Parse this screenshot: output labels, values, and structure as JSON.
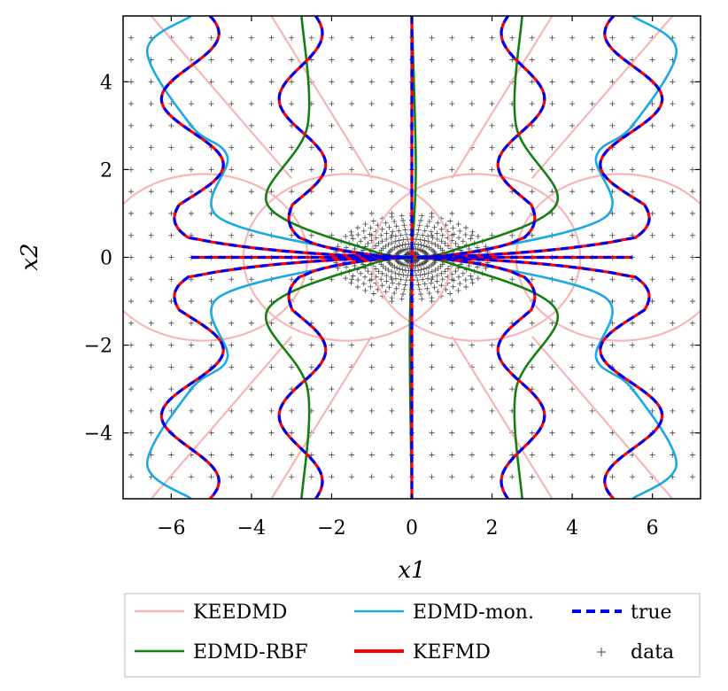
{
  "chart_data": {
    "type": "line",
    "xlabel": "x1",
    "ylabel": "x2",
    "xlim": [
      -7.2,
      7.2
    ],
    "ylim": [
      -5.5,
      5.5
    ],
    "x_ticks": [
      -6,
      -4,
      -2,
      0,
      2,
      4,
      6
    ],
    "y_ticks": [
      -4,
      -2,
      0,
      2,
      4
    ],
    "x_tick_labels": [
      "−6",
      "−4",
      "−2",
      "0",
      "2",
      "4",
      "6"
    ],
    "y_tick_labels": [
      "−4",
      "−2",
      "0",
      "2",
      "4"
    ],
    "grid": false,
    "legend_position": "below",
    "colors": {
      "KEEDMD": "#f7b6b6",
      "EDMD-mon.": "#1ba9e1",
      "true": "#0000ee",
      "EDMD-RBF": "#138013",
      "KEFMD": "#ff0000",
      "data": "#444444"
    },
    "legend": [
      {
        "name": "KEEDMD",
        "style": "solid"
      },
      {
        "name": "EDMD-mon.",
        "style": "solid"
      },
      {
        "name": "true",
        "style": "dashed"
      },
      {
        "name": "EDMD-RBF",
        "style": "solid"
      },
      {
        "name": "KEFMD",
        "style": "solid"
      },
      {
        "name": "data",
        "style": "marker"
      }
    ],
    "true_level_x": [
      -5.5,
      -2.75,
      0,
      2.75,
      5.5
    ],
    "series": [
      {
        "name": "true",
        "points": [
          [
            0,
            -5.5
          ],
          [
            0,
            5.5
          ]
        ]
      },
      {
        "name": "EDMD-mon.",
        "points": [
          [
            5.5,
            5.5
          ],
          [
            6.6,
            4.7
          ],
          [
            5.5,
            3.0
          ],
          [
            4.6,
            2.3
          ],
          [
            4.8,
            0.9
          ],
          [
            1.0,
            0.05
          ],
          [
            0,
            0
          ],
          [
            1.0,
            -0.05
          ],
          [
            4.8,
            -0.9
          ],
          [
            4.6,
            -2.3
          ],
          [
            5.5,
            -3.0
          ],
          [
            6.6,
            -4.7
          ],
          [
            5.5,
            -5.5
          ]
        ]
      },
      {
        "name": "EDMD-RBF",
        "points": [
          [
            2.75,
            5.5
          ],
          [
            2.6,
            3.0
          ],
          [
            3.6,
            1.2
          ],
          [
            1.0,
            0.15
          ],
          [
            0,
            0
          ],
          [
            1.0,
            -0.15
          ],
          [
            3.6,
            -1.2
          ],
          [
            2.6,
            -3.0
          ],
          [
            2.75,
            -5.5
          ]
        ]
      },
      {
        "name": "KEEDMD",
        "points": [
          [
            -7.0,
            1.6
          ],
          [
            -4.0,
            1.8
          ],
          [
            0,
            2.0
          ],
          [
            4.0,
            1.8
          ],
          [
            7.0,
            1.6
          ]
        ]
      }
    ]
  }
}
